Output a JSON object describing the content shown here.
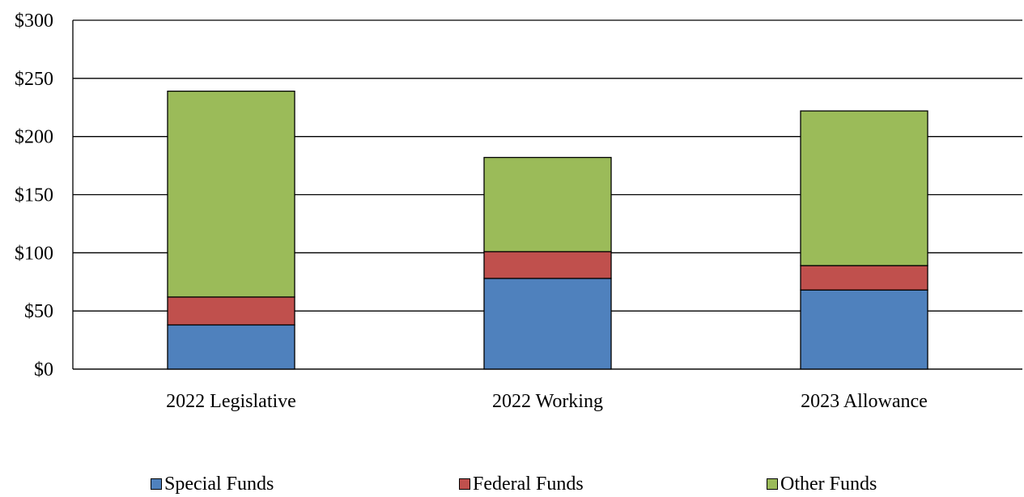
{
  "chart_data": {
    "type": "bar",
    "stacked": true,
    "title": "",
    "xlabel": "",
    "ylabel": "",
    "categories": [
      "2022 Legislative",
      "2022 Working",
      "2023 Allowance"
    ],
    "series": [
      {
        "name": "Special Funds",
        "color": "#4f81bd",
        "values": [
          38,
          78,
          68
        ]
      },
      {
        "name": "Federal Funds",
        "color": "#c0504d",
        "values": [
          24,
          23,
          21
        ]
      },
      {
        "name": "Other Funds",
        "color": "#9bbb59",
        "values": [
          177,
          81,
          133
        ]
      }
    ],
    "ylim": [
      0,
      300
    ],
    "yticks": [
      0,
      50,
      100,
      150,
      200,
      250,
      300
    ],
    "ytick_labels": [
      "$0",
      "$50",
      "$100",
      "$150",
      "$200",
      "$250",
      "$300"
    ],
    "grid": true,
    "legend_position": "bottom"
  }
}
